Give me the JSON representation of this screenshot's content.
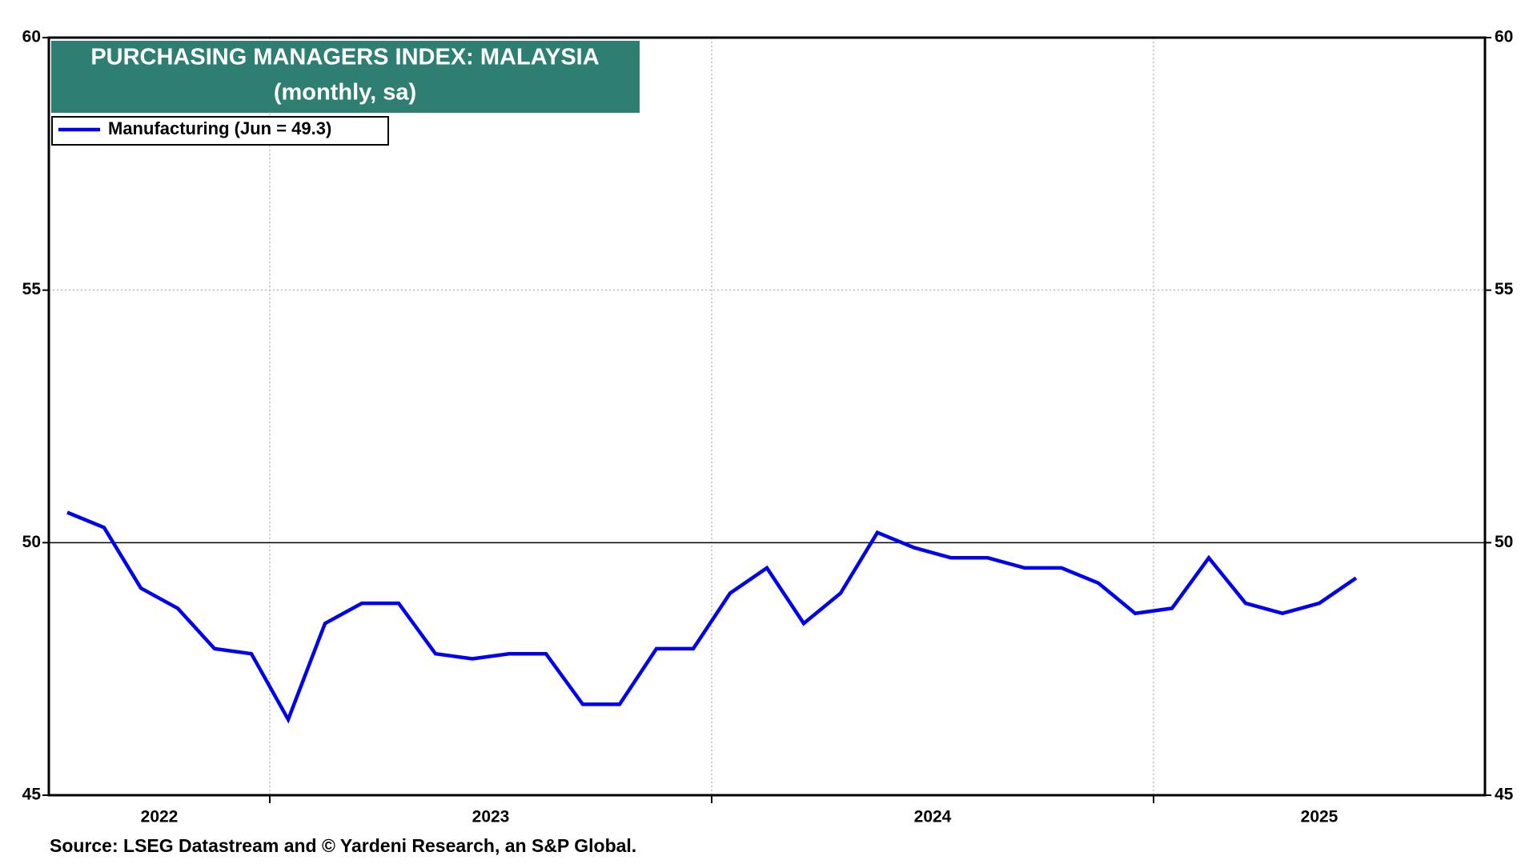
{
  "chart_data": {
    "type": "line",
    "title": "PURCHASING MANAGERS INDEX: MALAYSIA",
    "subtitle": "(monthly, sa)",
    "source": "Source: LSEG Datastream and © Yardeni Research, an S&P Global.",
    "x": [
      "2022-07",
      "2022-08",
      "2022-09",
      "2022-10",
      "2022-11",
      "2022-12",
      "2023-01",
      "2023-02",
      "2023-03",
      "2023-04",
      "2023-05",
      "2023-06",
      "2023-07",
      "2023-08",
      "2023-09",
      "2023-10",
      "2023-11",
      "2023-12",
      "2024-01",
      "2024-02",
      "2024-03",
      "2024-04",
      "2024-05",
      "2024-06",
      "2024-07",
      "2024-08",
      "2024-09",
      "2024-10",
      "2024-11",
      "2024-12",
      "2025-01",
      "2025-02",
      "2025-03",
      "2025-04",
      "2025-05",
      "2025-06"
    ],
    "series": [
      {
        "name": "Manufacturing (Jun = 49.3)",
        "color": "#0000ee",
        "values": [
          50.6,
          50.3,
          49.1,
          48.7,
          47.9,
          47.8,
          46.5,
          48.4,
          48.8,
          48.8,
          47.8,
          47.7,
          47.8,
          47.8,
          46.8,
          46.8,
          47.9,
          47.9,
          49.0,
          49.5,
          48.4,
          49.0,
          50.2,
          49.9,
          49.7,
          49.7,
          49.5,
          49.5,
          49.2,
          48.6,
          48.7,
          49.7,
          48.8,
          48.6,
          48.8,
          49.3
        ]
      }
    ],
    "xlim": [
      "2022-07",
      "2025-10"
    ],
    "xticks": [
      2022,
      2023,
      2024,
      2025
    ],
    "ylim": [
      45,
      60
    ],
    "yticks": [
      45,
      50,
      55,
      60
    ],
    "y2lim": [
      45,
      60
    ],
    "y2ticks": [
      45,
      50,
      55,
      60
    ],
    "hline": 50,
    "grid": true,
    "legend": "upper left"
  }
}
